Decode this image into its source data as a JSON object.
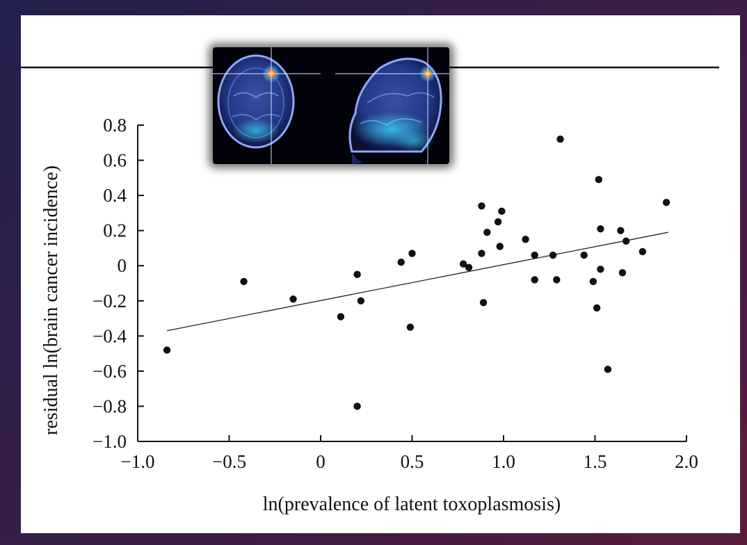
{
  "chart_data": {
    "type": "scatter",
    "xlabel": "ln(prevalence of latent toxoplasmosis)",
    "ylabel": "residual ln(brain cancer incidence)",
    "xlim": [
      -1.0,
      2.0
    ],
    "ylim": [
      -1.0,
      0.8
    ],
    "x_ticks": [
      "−1.0",
      "−0.5",
      "0",
      "0.5",
      "1.0",
      "1.5",
      "2.0"
    ],
    "x_tick_values": [
      -1.0,
      -0.5,
      0,
      0.5,
      1.0,
      1.5,
      2.0
    ],
    "y_ticks": [
      "0.8",
      "0.6",
      "0.4",
      "0.2",
      "0",
      "−0.2",
      "−0.4",
      "−0.6",
      "−0.8",
      "−1.0"
    ],
    "y_tick_values": [
      0.8,
      0.6,
      0.4,
      0.2,
      0,
      -0.2,
      -0.4,
      -0.6,
      -0.8,
      -1.0
    ],
    "grid": false,
    "points": [
      {
        "x": -0.84,
        "y": -0.48
      },
      {
        "x": -0.42,
        "y": -0.09
      },
      {
        "x": -0.15,
        "y": -0.19
      },
      {
        "x": 0.11,
        "y": -0.29
      },
      {
        "x": 0.2,
        "y": -0.05
      },
      {
        "x": 0.22,
        "y": -0.2
      },
      {
        "x": 0.2,
        "y": -0.8
      },
      {
        "x": 0.44,
        "y": 0.02
      },
      {
        "x": 0.5,
        "y": 0.07
      },
      {
        "x": 0.49,
        "y": -0.35
      },
      {
        "x": 0.78,
        "y": 0.01
      },
      {
        "x": 0.81,
        "y": -0.01
      },
      {
        "x": 0.88,
        "y": 0.34
      },
      {
        "x": 0.88,
        "y": 0.07
      },
      {
        "x": 0.91,
        "y": 0.19
      },
      {
        "x": 0.89,
        "y": -0.21
      },
      {
        "x": 0.97,
        "y": 0.25
      },
      {
        "x": 0.99,
        "y": 0.31
      },
      {
        "x": 0.98,
        "y": 0.11
      },
      {
        "x": 1.12,
        "y": 0.15
      },
      {
        "x": 1.17,
        "y": 0.06
      },
      {
        "x": 1.17,
        "y": -0.08
      },
      {
        "x": 1.27,
        "y": 0.06
      },
      {
        "x": 1.29,
        "y": -0.08
      },
      {
        "x": 1.31,
        "y": 0.72
      },
      {
        "x": 1.44,
        "y": 0.06
      },
      {
        "x": 1.49,
        "y": -0.09
      },
      {
        "x": 1.52,
        "y": 0.49
      },
      {
        "x": 1.53,
        "y": 0.21
      },
      {
        "x": 1.53,
        "y": -0.02
      },
      {
        "x": 1.51,
        "y": -0.24
      },
      {
        "x": 1.57,
        "y": -0.59
      },
      {
        "x": 1.64,
        "y": 0.2
      },
      {
        "x": 1.67,
        "y": 0.14
      },
      {
        "x": 1.65,
        "y": -0.04
      },
      {
        "x": 1.76,
        "y": 0.08
      },
      {
        "x": 1.89,
        "y": 0.36
      }
    ],
    "trendline": {
      "x": [
        -0.84,
        1.9
      ],
      "y": [
        -0.37,
        0.19
      ]
    }
  },
  "colors": {
    "background_gradient": [
      "#23204e",
      "#3a1d45",
      "#5a1c3c"
    ],
    "panel": "#ffffff",
    "points": "#111111",
    "axes": "#111111"
  }
}
